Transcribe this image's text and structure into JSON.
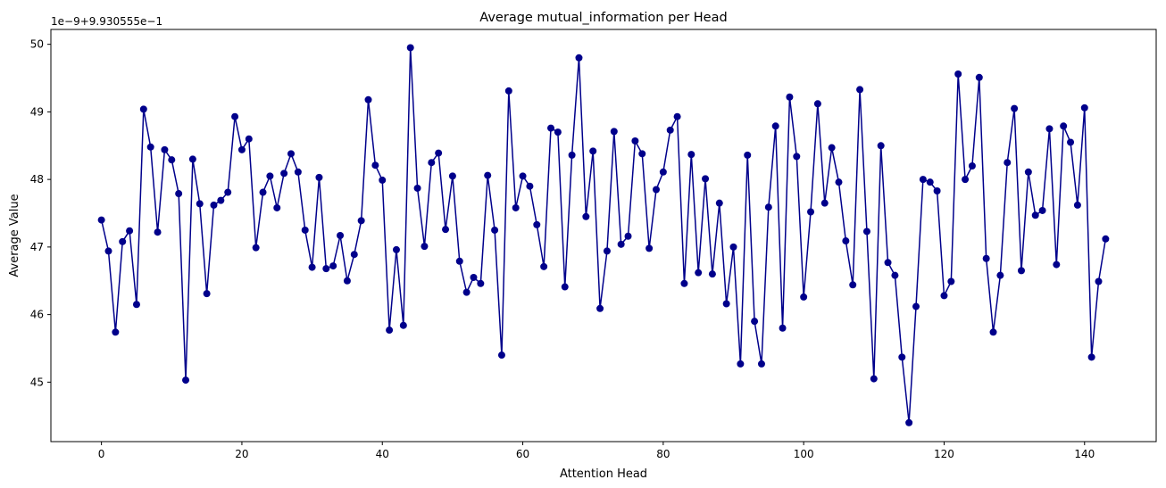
{
  "chart_data": {
    "type": "line",
    "title": "Average mutual_information per Head",
    "xlabel": "Attention Head",
    "ylabel": "Average Value",
    "offset_label": "1e−9+9.930555e−1",
    "xlim": [
      -7.2,
      150.2
    ],
    "ylim": [
      44.12,
      50.22
    ],
    "xticks": [
      0,
      20,
      40,
      60,
      80,
      100,
      120,
      140
    ],
    "yticks": [
      45,
      46,
      47,
      48,
      49,
      50
    ],
    "grid": false,
    "series": [
      {
        "color": "#00008b",
        "marker": "circle",
        "x": [
          0,
          1,
          2,
          3,
          4,
          5,
          6,
          7,
          8,
          9,
          10,
          11,
          12,
          13,
          14,
          15,
          16,
          17,
          18,
          19,
          20,
          21,
          22,
          23,
          24,
          25,
          26,
          27,
          28,
          29,
          30,
          31,
          32,
          33,
          34,
          35,
          36,
          37,
          38,
          39,
          40,
          41,
          42,
          43,
          44,
          45,
          46,
          47,
          48,
          49,
          50,
          51,
          52,
          53,
          54,
          55,
          56,
          57,
          58,
          59,
          60,
          61,
          62,
          63,
          64,
          65,
          66,
          67,
          68,
          69,
          70,
          71,
          72,
          73,
          74,
          75,
          76,
          77,
          78,
          79,
          80,
          81,
          82,
          83,
          84,
          85,
          86,
          87,
          88,
          89,
          90,
          91,
          92,
          93,
          94,
          95,
          96,
          97,
          98,
          99,
          100,
          101,
          102,
          103,
          104,
          105,
          106,
          107,
          108,
          109,
          110,
          111,
          112,
          113,
          114,
          115,
          116,
          117,
          118,
          119,
          120,
          121,
          122,
          123,
          124,
          125,
          126,
          127,
          128,
          129,
          130,
          131,
          132,
          133,
          134,
          135,
          136,
          137,
          138,
          139,
          140,
          141,
          142,
          143
        ],
        "values": [
          47.4,
          46.94,
          45.74,
          47.08,
          47.24,
          46.15,
          49.04,
          48.48,
          47.22,
          48.44,
          48.29,
          47.79,
          45.03,
          48.3,
          47.64,
          46.31,
          47.62,
          47.69,
          47.81,
          48.93,
          48.44,
          48.6,
          46.99,
          47.81,
          48.05,
          47.58,
          48.09,
          48.38,
          48.11,
          47.25,
          46.7,
          48.03,
          46.68,
          46.72,
          47.17,
          46.5,
          46.89,
          47.39,
          49.18,
          48.21,
          47.99,
          45.77,
          46.96,
          45.84,
          49.95,
          47.87,
          47.01,
          48.25,
          48.39,
          47.26,
          48.05,
          46.79,
          46.33,
          46.55,
          46.46,
          48.06,
          47.25,
          45.4,
          49.31,
          47.58,
          48.05,
          47.9,
          47.33,
          46.71,
          48.76,
          48.7,
          46.41,
          48.36,
          49.8,
          47.45,
          48.42,
          46.09,
          46.94,
          48.71,
          47.04,
          47.16,
          48.57,
          48.38,
          46.98,
          47.85,
          48.11,
          48.73,
          48.93,
          46.46,
          48.37,
          46.62,
          48.01,
          46.6,
          47.65,
          46.16,
          47.0,
          45.27,
          48.36,
          45.9,
          45.27,
          47.59,
          48.79,
          45.8,
          49.22,
          48.34,
          46.26,
          47.52,
          49.12,
          47.65,
          48.47,
          47.96,
          47.09,
          46.44,
          49.33,
          47.23,
          45.05,
          48.5,
          46.77,
          46.58,
          45.37,
          44.4,
          46.12,
          48.0,
          47.96,
          47.83,
          46.28,
          46.49,
          49.56,
          48.0,
          48.2,
          49.51,
          46.83,
          45.74,
          46.58,
          48.25,
          49.05,
          46.65,
          48.11,
          47.47,
          47.54,
          48.75,
          46.74,
          48.79,
          48.55,
          47.62,
          49.06,
          45.37,
          46.49,
          47.12
        ]
      }
    ]
  }
}
